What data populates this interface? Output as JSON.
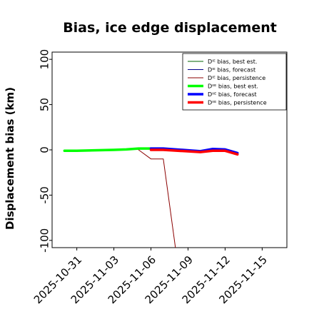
{
  "chart_data": {
    "type": "line",
    "title": "Bias, ice edge displacement",
    "xlabel": "",
    "ylabel": "Displacement bias (km)",
    "xlim": [
      "2025-10-29",
      "2025-11-17"
    ],
    "ylim": [
      -108,
      108
    ],
    "yticks": [
      100,
      50,
      0,
      -50,
      -100
    ],
    "xticks": [
      {
        "date": "2025-10-31",
        "label": "2025-10-31",
        "color": "#000000"
      },
      {
        "date": "2025-11-03",
        "label": "2025-11-03",
        "color": "#000000"
      },
      {
        "date": "2025-11-06",
        "label": "2025-11-06",
        "color": "#228B22"
      },
      {
        "date": "2025-11-09",
        "label": "2025-11-09",
        "color": "#000000"
      },
      {
        "date": "2025-11-12",
        "label": "2025-11-12",
        "color": "#000000"
      },
      {
        "date": "2025-11-15",
        "label": "2025-11-15",
        "color": "#000000"
      }
    ],
    "grid": false,
    "legend_position": "top-right",
    "series": [
      {
        "name": "Dᴵᴱ bias, best est.",
        "color": "#006400",
        "width": 1,
        "points": [
          [
            "2025-10-30",
            0
          ],
          [
            "2025-10-31",
            0
          ],
          [
            "2025-11-03",
            0
          ],
          [
            "2025-11-04",
            0.5
          ],
          [
            "2025-11-05",
            1
          ],
          [
            "2025-11-06",
            1.5
          ]
        ]
      },
      {
        "name": "Dᴵᴱ bias, forecast",
        "color": "#00008B",
        "width": 1,
        "points": [
          [
            "2025-11-05",
            1
          ],
          [
            "2025-11-06",
            2
          ],
          [
            "2025-11-07",
            2
          ],
          [
            "2025-11-10",
            -2
          ],
          [
            "2025-11-11",
            1
          ],
          [
            "2025-11-12",
            1
          ],
          [
            "2025-11-13",
            -3
          ]
        ]
      },
      {
        "name": "Dᴵᴱ bias, persistence",
        "color": "#8B0000",
        "width": 1,
        "points": [
          [
            "2025-11-05",
            0
          ],
          [
            "2025-11-06",
            -10
          ],
          [
            "2025-11-07",
            -10
          ],
          [
            "2025-11-08",
            -110
          ]
        ]
      },
      {
        "name": "Dᴵᴵᴱ bias, best est.",
        "color": "#00FF00",
        "width": 3.5,
        "points": [
          [
            "2025-10-30",
            -1
          ],
          [
            "2025-10-31",
            -1
          ],
          [
            "2025-11-03",
            0
          ],
          [
            "2025-11-04",
            0.5
          ],
          [
            "2025-11-05",
            1.5
          ],
          [
            "2025-11-06",
            1.5
          ]
        ]
      },
      {
        "name": "Dᴵᴵᴱ bias, forecast",
        "color": "#0000FF",
        "width": 3.5,
        "points": [
          [
            "2025-11-06",
            1.5
          ],
          [
            "2025-11-07",
            1.5
          ],
          [
            "2025-11-10",
            -1.5
          ],
          [
            "2025-11-11",
            1
          ],
          [
            "2025-11-12",
            0.5
          ],
          [
            "2025-11-13",
            -3.5
          ]
        ]
      },
      {
        "name": "Dᴵᴵᴱ bias, persistence",
        "color": "#FF0000",
        "width": 3.5,
        "points": [
          [
            "2025-11-06",
            0
          ],
          [
            "2025-11-07",
            0
          ],
          [
            "2025-11-10",
            -2.5
          ],
          [
            "2025-11-11",
            -1
          ],
          [
            "2025-11-12",
            -1
          ],
          [
            "2025-11-13",
            -5
          ]
        ]
      }
    ]
  }
}
